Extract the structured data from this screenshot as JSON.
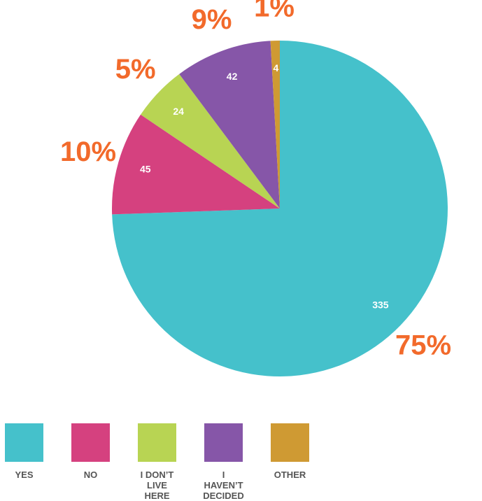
{
  "chart_data": {
    "type": "pie",
    "categories": [
      "YES",
      "NO",
      "I DON’T LIVE HERE",
      "I HAVEN’T DECIDED",
      "OTHER"
    ],
    "values": [
      335,
      45,
      24,
      42,
      4
    ],
    "percent_labels": [
      "75%",
      "10%",
      "5%",
      "9%",
      "1%"
    ],
    "colors": [
      "#45c1cb",
      "#d5417f",
      "#b8d453",
      "#8656a8",
      "#cf9a33"
    ],
    "start_angle": 0,
    "direction": "clockwise",
    "legend": "bottom"
  }
}
